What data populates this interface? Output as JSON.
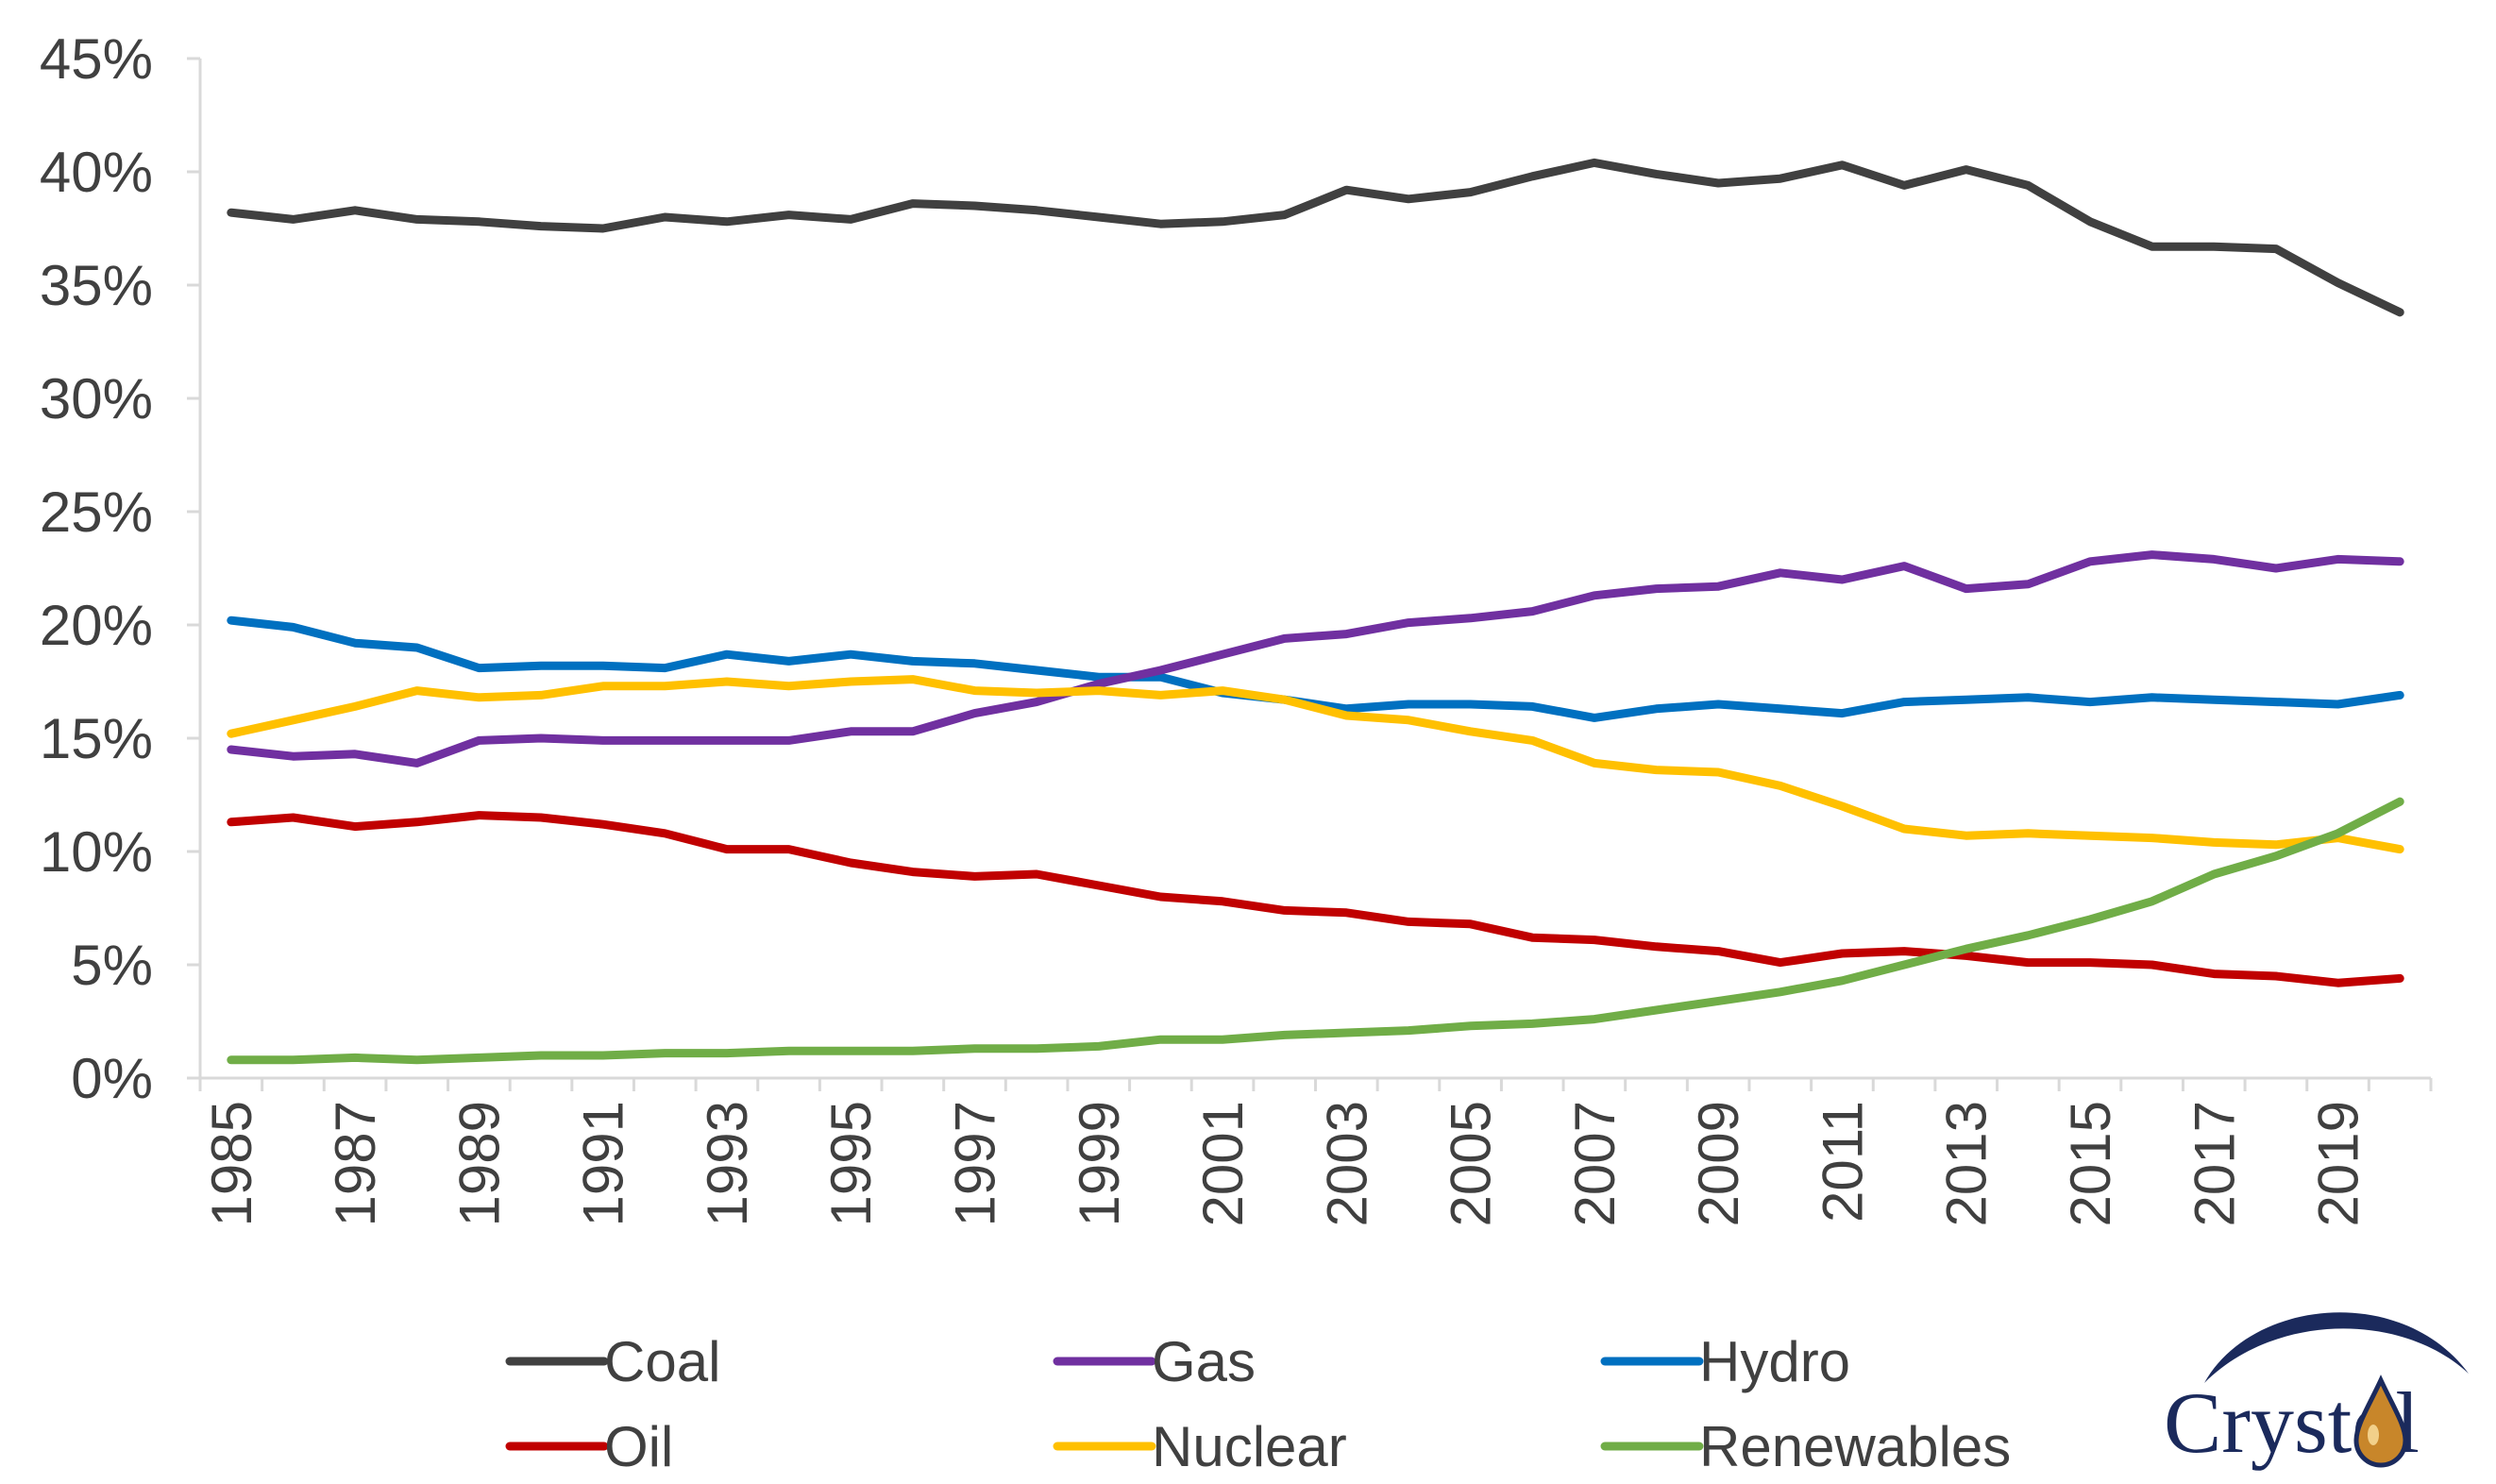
{
  "chart_data": {
    "type": "line",
    "title": "",
    "xlabel": "",
    "ylabel": "",
    "ylim": [
      0,
      45
    ],
    "yticks": [
      "0%",
      "5%",
      "10%",
      "15%",
      "20%",
      "25%",
      "30%",
      "35%",
      "40%",
      "45%"
    ],
    "grid": false,
    "legend_position": "bottom",
    "x": [
      1985,
      1986,
      1987,
      1988,
      1989,
      1990,
      1991,
      1992,
      1993,
      1994,
      1995,
      1996,
      1997,
      1998,
      1999,
      2000,
      2001,
      2002,
      2003,
      2004,
      2005,
      2006,
      2007,
      2008,
      2009,
      2010,
      2011,
      2012,
      2013,
      2014,
      2015,
      2016,
      2017,
      2018,
      2019,
      2020
    ],
    "xtick_labels": [
      "1985",
      "1987",
      "1989",
      "1991",
      "1993",
      "1995",
      "1997",
      "1999",
      "2001",
      "2003",
      "2005",
      "2007",
      "2009",
      "2011",
      "2013",
      "2015",
      "2017",
      "2019"
    ],
    "series": [
      {
        "name": "Coal",
        "color": "#404040",
        "values": [
          38.2,
          37.9,
          38.3,
          37.9,
          37.8,
          37.6,
          37.5,
          38.0,
          37.8,
          38.1,
          37.9,
          38.6,
          38.5,
          38.3,
          38.0,
          37.7,
          37.8,
          38.1,
          39.2,
          38.8,
          39.1,
          39.8,
          40.4,
          39.9,
          39.5,
          39.7,
          40.3,
          39.4,
          40.1,
          39.4,
          37.8,
          36.7,
          36.7,
          36.6,
          35.1,
          33.8
        ]
      },
      {
        "name": "Gas",
        "color": "#7030a0",
        "values": [
          14.5,
          14.2,
          14.3,
          13.9,
          14.9,
          15.0,
          14.9,
          14.9,
          14.9,
          14.9,
          15.3,
          15.3,
          16.1,
          16.6,
          17.4,
          18.0,
          18.7,
          19.4,
          19.6,
          20.1,
          20.3,
          20.6,
          21.3,
          21.6,
          21.7,
          22.3,
          22.0,
          22.6,
          21.6,
          21.8,
          22.8,
          23.1,
          22.9,
          22.5,
          22.9,
          22.8
        ]
      },
      {
        "name": "Hydro",
        "color": "#0070c0",
        "values": [
          20.2,
          19.9,
          19.2,
          19.0,
          18.1,
          18.2,
          18.2,
          18.1,
          18.7,
          18.4,
          18.7,
          18.4,
          18.3,
          18.0,
          17.7,
          17.7,
          17.0,
          16.7,
          16.3,
          16.5,
          16.5,
          16.4,
          15.9,
          16.3,
          16.5,
          16.3,
          16.1,
          16.6,
          16.7,
          16.8,
          16.6,
          16.8,
          16.7,
          16.6,
          16.5,
          16.9
        ]
      },
      {
        "name": "Oil",
        "color": "#c00000",
        "values": [
          11.3,
          11.5,
          11.1,
          11.3,
          11.6,
          11.5,
          11.2,
          10.8,
          10.1,
          10.1,
          9.5,
          9.1,
          8.9,
          9.0,
          8.5,
          8.0,
          7.8,
          7.4,
          7.3,
          6.9,
          6.8,
          6.2,
          6.1,
          5.8,
          5.6,
          5.1,
          5.5,
          5.6,
          5.4,
          5.1,
          5.1,
          5.0,
          4.6,
          4.5,
          4.2,
          4.4
        ]
      },
      {
        "name": "Nuclear",
        "color": "#ffc000",
        "values": [
          15.2,
          15.8,
          16.4,
          17.1,
          16.8,
          16.9,
          17.3,
          17.3,
          17.5,
          17.3,
          17.5,
          17.6,
          17.1,
          17.0,
          17.1,
          16.9,
          17.1,
          16.7,
          16.0,
          15.8,
          15.3,
          14.9,
          13.9,
          13.6,
          13.5,
          12.9,
          12.0,
          11.0,
          10.7,
          10.8,
          10.7,
          10.6,
          10.4,
          10.3,
          10.6,
          10.1
        ]
      },
      {
        "name": "Renewables",
        "color": "#70ad47",
        "values": [
          0.8,
          0.8,
          0.9,
          0.8,
          0.9,
          1.0,
          1.0,
          1.1,
          1.1,
          1.2,
          1.2,
          1.2,
          1.3,
          1.3,
          1.4,
          1.7,
          1.7,
          1.9,
          2.0,
          2.1,
          2.3,
          2.4,
          2.6,
          3.0,
          3.4,
          3.8,
          4.3,
          5.0,
          5.7,
          6.3,
          7.0,
          7.8,
          9.0,
          9.8,
          10.8,
          12.2
        ]
      }
    ]
  },
  "logo": {
    "text": "Crystol",
    "icon": "oil-drop-logo"
  }
}
